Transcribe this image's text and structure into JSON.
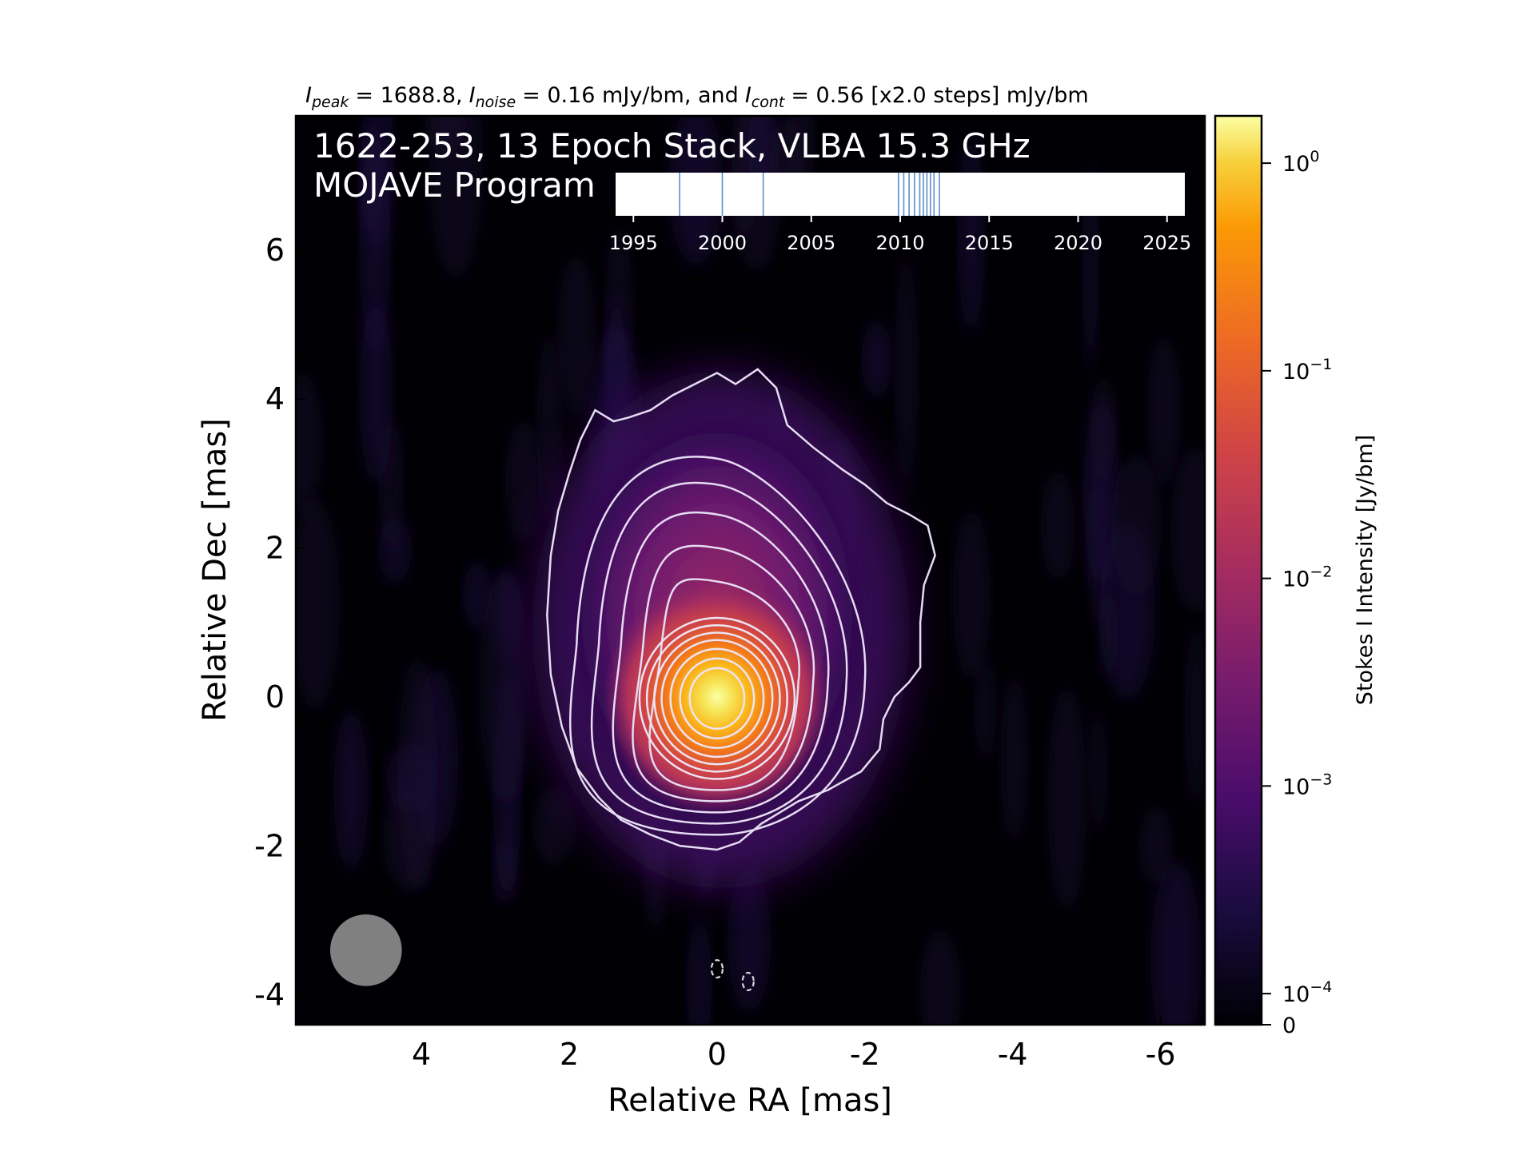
{
  "chart_data": {
    "type": "heatmap",
    "header": {
      "prefix": "I",
      "peak_sub": "peak",
      "peak_value": "= 1688.8,",
      "noise_sub": "noise",
      "noise_value": "= 0.16 mJy/bm, and",
      "cont_sub": "cont",
      "cont_value": "= 0.56 [x2.0 steps] mJy/bm"
    },
    "title_line1": "1622-253, 13 Epoch Stack, VLBA 15.3 GHz",
    "title_line2": "MOJAVE Program",
    "xlabel": "Relative RA [mas]",
    "ylabel": "Relative Dec [mas]",
    "xlim": [
      5.7,
      -6.6
    ],
    "ylim": [
      -4.4,
      7.8
    ],
    "x_ticks": [
      4,
      2,
      0,
      -2,
      -4,
      -6
    ],
    "y_ticks": [
      6,
      4,
      2,
      0,
      -2,
      -4
    ],
    "colorbar": {
      "label": "Stokes I Intensity [Jy/bm]",
      "scale": "log",
      "ticks": [
        {
          "value": 1,
          "base": "10",
          "exp": "0"
        },
        {
          "value": 0.1,
          "base": "10",
          "exp": "−1"
        },
        {
          "value": 0.01,
          "base": "10",
          "exp": "−2"
        },
        {
          "value": 0.001,
          "base": "10",
          "exp": "−3"
        },
        {
          "value": 0.0001,
          "base": "10",
          "exp": "−4"
        }
      ],
      "zero_label": "0",
      "colormap": "inferno"
    },
    "beam": {
      "center_ra": 4.75,
      "center_dec": -3.4,
      "diameter_mas": 0.97,
      "color": "#808080"
    },
    "peak_jy": 1.6888,
    "contour_base_jy": 0.00056,
    "contour_step": 2.0,
    "negative_contours": [
      {
        "ra": 0.0,
        "dec": -3.65
      },
      {
        "ra": -0.42,
        "dec": -3.82
      }
    ],
    "epochs": {
      "count": 13,
      "axis_ticks": [
        1995,
        2000,
        2005,
        2010,
        2015,
        2020,
        2025
      ],
      "xlim": [
        1994.0,
        2026.0
      ],
      "years": [
        1997.6,
        2000.0,
        2002.3,
        2009.9,
        2010.2,
        2010.5,
        2010.8,
        2011.1,
        2011.3,
        2011.5,
        2011.7,
        2011.9,
        2012.2
      ],
      "line_color": "#5b8fc9"
    }
  }
}
